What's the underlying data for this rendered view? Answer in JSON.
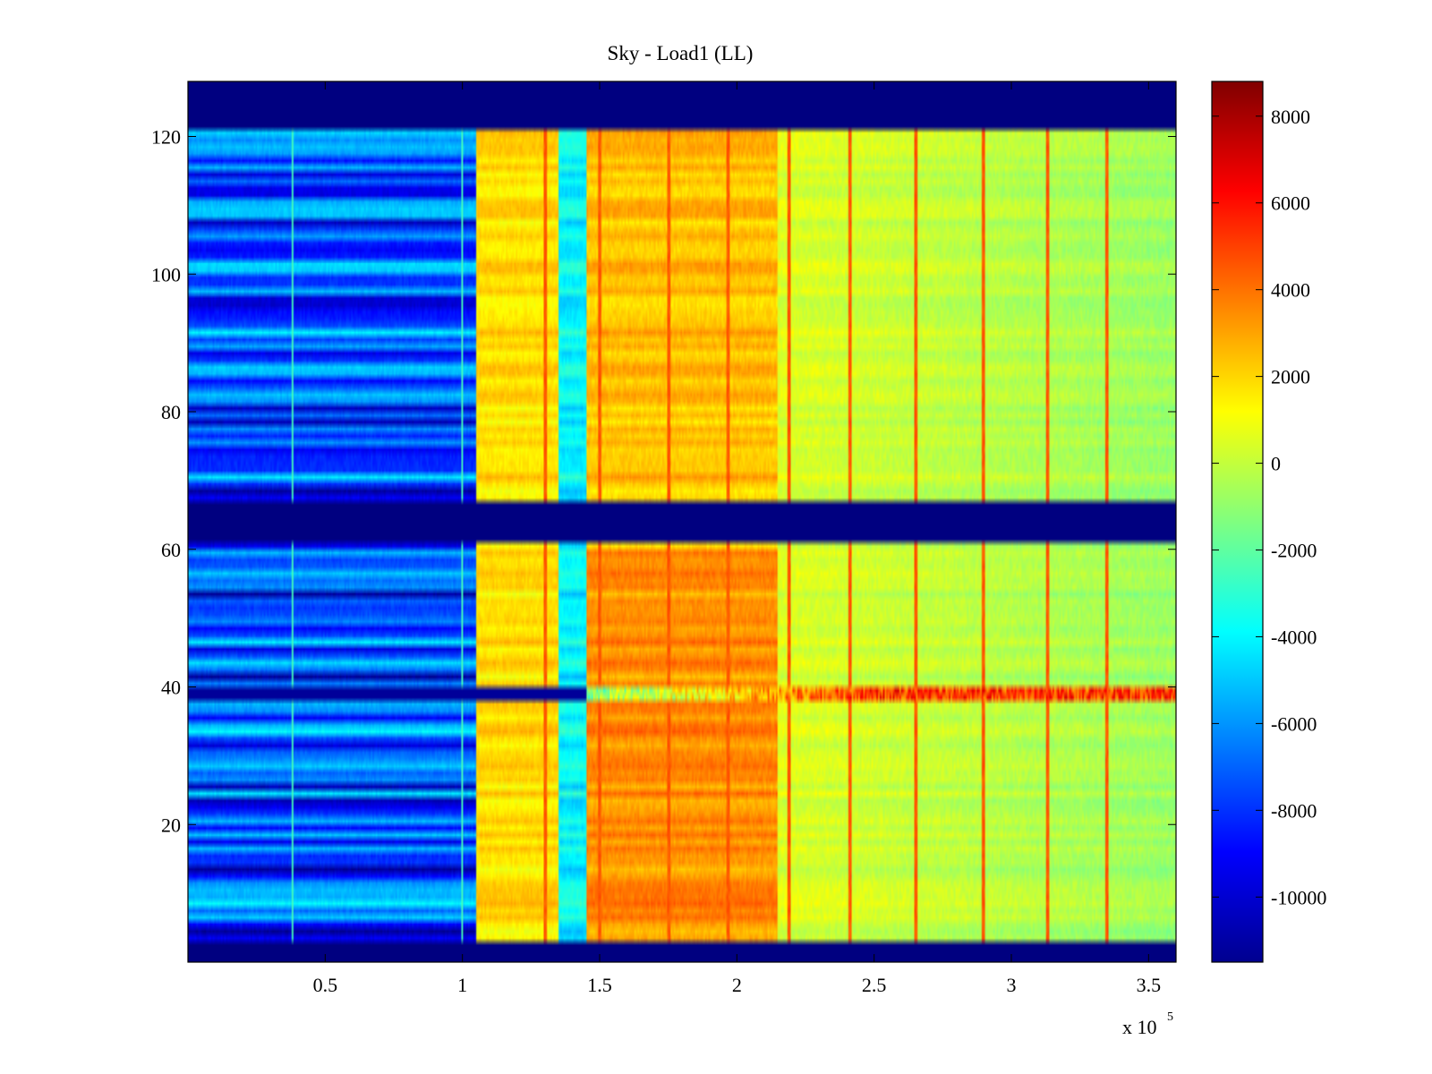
{
  "chart_data": {
    "type": "heatmap",
    "title": "Sky - Load1 (LL)",
    "xlabel": "",
    "ylabel": "",
    "x_multiplier_label": "x 10",
    "x_multiplier_exponent": "5",
    "xlim": [
      0,
      3.6
    ],
    "ylim": [
      0,
      128
    ],
    "x_ticks": [
      0.5,
      1,
      1.5,
      2,
      2.5,
      3,
      3.5
    ],
    "x_tick_labels": [
      "0.5",
      "1",
      "1.5",
      "2",
      "2.5",
      "3",
      "3.5"
    ],
    "y_ticks": [
      20,
      40,
      60,
      80,
      100,
      120
    ],
    "y_tick_labels": [
      "20",
      "40",
      "60",
      "80",
      "100",
      "120"
    ],
    "colormap": "jet",
    "colorbar": {
      "clim": [
        -11500,
        8800
      ],
      "ticks": [
        8000,
        6000,
        4000,
        2000,
        0,
        -2000,
        -4000,
        -6000,
        -8000,
        -10000
      ],
      "tick_labels": [
        "8000",
        "6000",
        "4000",
        "2000",
        "0",
        "-2000",
        "-4000",
        "-6000",
        "-8000",
        "-10000"
      ]
    },
    "masked_row_ranges": [
      [
        0,
        3
      ],
      [
        61,
        67
      ],
      [
        121,
        128
      ]
    ],
    "x_segments": [
      {
        "x0": 0.0,
        "x1": 1.05,
        "mean_value": -7500
      },
      {
        "x0": 1.05,
        "x1": 1.35,
        "mean_value": 1800
      },
      {
        "x0": 1.35,
        "x1": 1.45,
        "mean_value": -4000
      },
      {
        "x0": 1.45,
        "x1": 2.15,
        "mean_value": 2800
      },
      {
        "x0": 2.15,
        "x1": 3.6,
        "mean_value": 500
      }
    ],
    "stripe_x": [
      1.3,
      1.5,
      1.75,
      1.97,
      2.19,
      2.41,
      2.65,
      2.9,
      3.13,
      3.35
    ],
    "stripe_value": 4500,
    "anomalous_row": {
      "y": 39,
      "value_left": -11000,
      "value_right": 6500
    }
  },
  "colors": {
    "background": "#ffffff",
    "axis": "#000000",
    "masked": "#00008f"
  }
}
